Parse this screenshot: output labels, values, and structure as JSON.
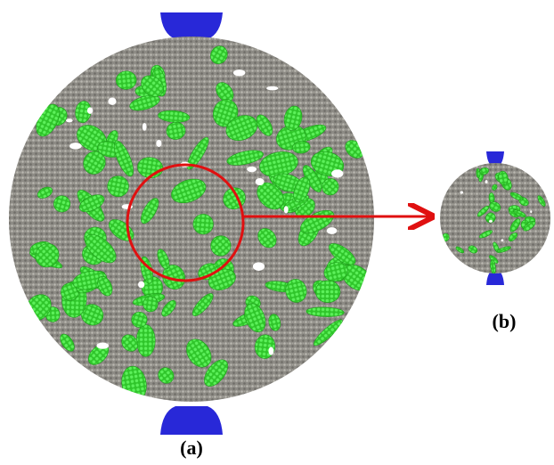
{
  "figure": {
    "panel_a_label": "(a)",
    "panel_b_label": "(b)"
  }
}
